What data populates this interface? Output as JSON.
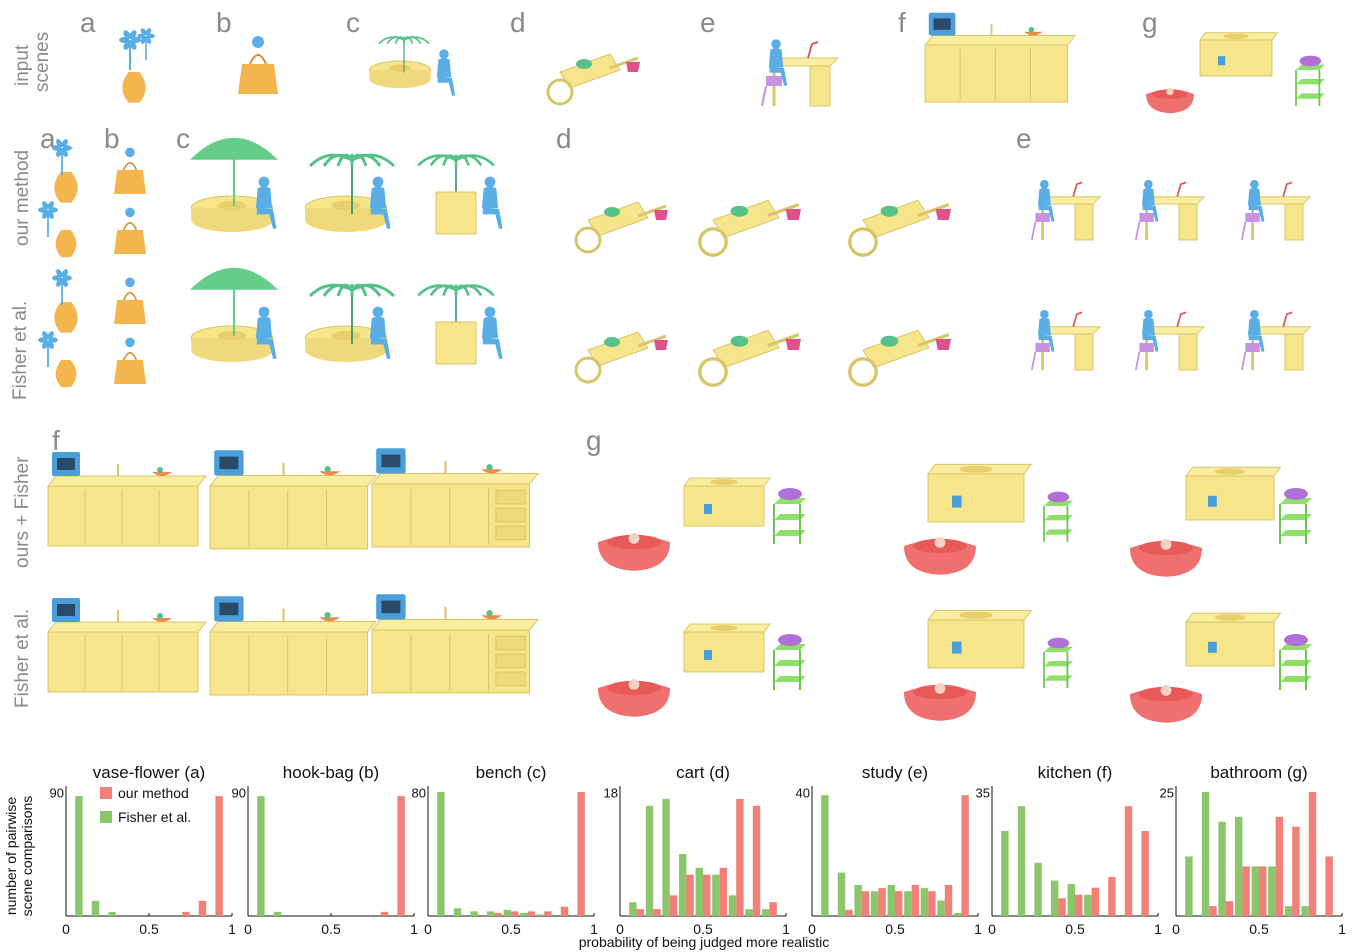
{
  "row_labels": {
    "input": [
      "input",
      "scenes"
    ],
    "ours": "our method",
    "fisher": "Fisher et al.",
    "ours_plus_fisher": "ours + Fisher",
    "fisher2": "Fisher et al."
  },
  "letters": [
    "a",
    "b",
    "c",
    "d",
    "e",
    "f",
    "g"
  ],
  "colors": {
    "ours": "#f08078",
    "fisher": "#8cc66a",
    "furniture": "#f6e58a",
    "furniture_edge": "#d8c56a",
    "human": "#5aaee6",
    "plant": "#55c28a",
    "umbrella": "#66cc8a",
    "basket": "#e0508a",
    "chair": "#c792e0",
    "lamp": "#e05a5a",
    "tub": "#f07070",
    "shelf": "#8ee06a",
    "vase": "#f4b54e",
    "oven": "#4a9fd8",
    "bar_grid": "#888888"
  },
  "chart_common": {
    "ylabel": [
      "number of pairwise",
      "scene comparisons"
    ],
    "xlabel": "probability of being judged more realistic",
    "xticks": [
      "0",
      "0.5",
      "1"
    ],
    "legend": [
      {
        "name": "our method",
        "color": "#f08078"
      },
      {
        "name": "Fisher et al.",
        "color": "#8cc66a"
      }
    ]
  },
  "chart_data": [
    {
      "type": "bar",
      "title": "vase-flower (a)",
      "ymax_label": "90",
      "ylim": [
        0,
        90
      ],
      "x": [
        0.1,
        0.2,
        0.3,
        0.4,
        0.5,
        0.6,
        0.7,
        0.8,
        0.9
      ],
      "series": [
        {
          "name": "our method",
          "values": [
            0,
            0,
            0,
            0,
            0,
            0,
            3,
            11,
            87
          ]
        },
        {
          "name": "Fisher et al.",
          "values": [
            87,
            11,
            3,
            0,
            0,
            0,
            0,
            0,
            0
          ]
        }
      ]
    },
    {
      "type": "bar",
      "title": "hook-bag (b)",
      "ymax_label": "90",
      "ylim": [
        0,
        90
      ],
      "x": [
        0.1,
        0.2,
        0.3,
        0.4,
        0.5,
        0.6,
        0.7,
        0.8,
        0.9
      ],
      "series": [
        {
          "name": "our method",
          "values": [
            0,
            0,
            0,
            0,
            0,
            0,
            0,
            3,
            87
          ]
        },
        {
          "name": "Fisher et al.",
          "values": [
            87,
            3,
            0,
            0,
            0,
            0,
            0,
            0,
            0
          ]
        }
      ]
    },
    {
      "type": "bar",
      "title": "bench (c)",
      "ymax_label": "80",
      "ylim": [
        0,
        80
      ],
      "x": [
        0.1,
        0.2,
        0.3,
        0.4,
        0.5,
        0.6,
        0.7,
        0.8,
        0.9
      ],
      "series": [
        {
          "name": "our method",
          "values": [
            0,
            0,
            0,
            2,
            3,
            3,
            3,
            6,
            80
          ]
        },
        {
          "name": "Fisher et al.",
          "values": [
            80,
            5,
            3,
            3,
            4,
            2,
            1,
            0,
            0
          ]
        }
      ]
    },
    {
      "type": "bar",
      "title": "cart (d)",
      "ymax_label": "18",
      "ylim": [
        0,
        18
      ],
      "x": [
        0.1,
        0.2,
        0.3,
        0.4,
        0.5,
        0.6,
        0.7,
        0.8,
        0.9
      ],
      "series": [
        {
          "name": "our method",
          "values": [
            1,
            1,
            3,
            6,
            6,
            7,
            17,
            16,
            2
          ]
        },
        {
          "name": "Fisher et al.",
          "values": [
            2,
            16,
            17,
            9,
            7,
            6,
            3,
            1,
            1
          ]
        }
      ]
    },
    {
      "type": "bar",
      "title": "study (e)",
      "ymax_label": "40",
      "ylim": [
        0,
        40
      ],
      "x": [
        0.1,
        0.2,
        0.3,
        0.4,
        0.5,
        0.6,
        0.7,
        0.8,
        0.9
      ],
      "series": [
        {
          "name": "our method",
          "values": [
            0,
            2,
            8,
            9,
            8,
            10,
            8,
            10,
            39
          ]
        },
        {
          "name": "Fisher et al.",
          "values": [
            39,
            14,
            10,
            8,
            10,
            8,
            9,
            5,
            1
          ]
        }
      ]
    },
    {
      "type": "bar",
      "title": "kitchen (f)",
      "ymax_label": "35",
      "ylim": [
        0,
        35
      ],
      "x": [
        0.1,
        0.2,
        0.3,
        0.4,
        0.5,
        0.6,
        0.7,
        0.8,
        0.9
      ],
      "series": [
        {
          "name": "our method",
          "values": [
            0,
            0,
            0,
            5,
            6,
            8,
            11,
            31,
            24
          ]
        },
        {
          "name": "Fisher et al.",
          "values": [
            24,
            31,
            15,
            10,
            9,
            6,
            0,
            0,
            0
          ]
        }
      ]
    },
    {
      "type": "bar",
      "title": "bathroom (g)",
      "ymax_label": "25",
      "ylim": [
        0,
        25
      ],
      "x": [
        0.1,
        0.2,
        0.3,
        0.4,
        0.5,
        0.6,
        0.7,
        0.8,
        0.9
      ],
      "series": [
        {
          "name": "our method",
          "values": [
            0,
            2,
            3,
            10,
            10,
            20,
            18,
            25,
            12
          ]
        },
        {
          "name": "Fisher et al.",
          "values": [
            12,
            25,
            19,
            20,
            10,
            10,
            2,
            2,
            0
          ]
        }
      ]
    }
  ]
}
